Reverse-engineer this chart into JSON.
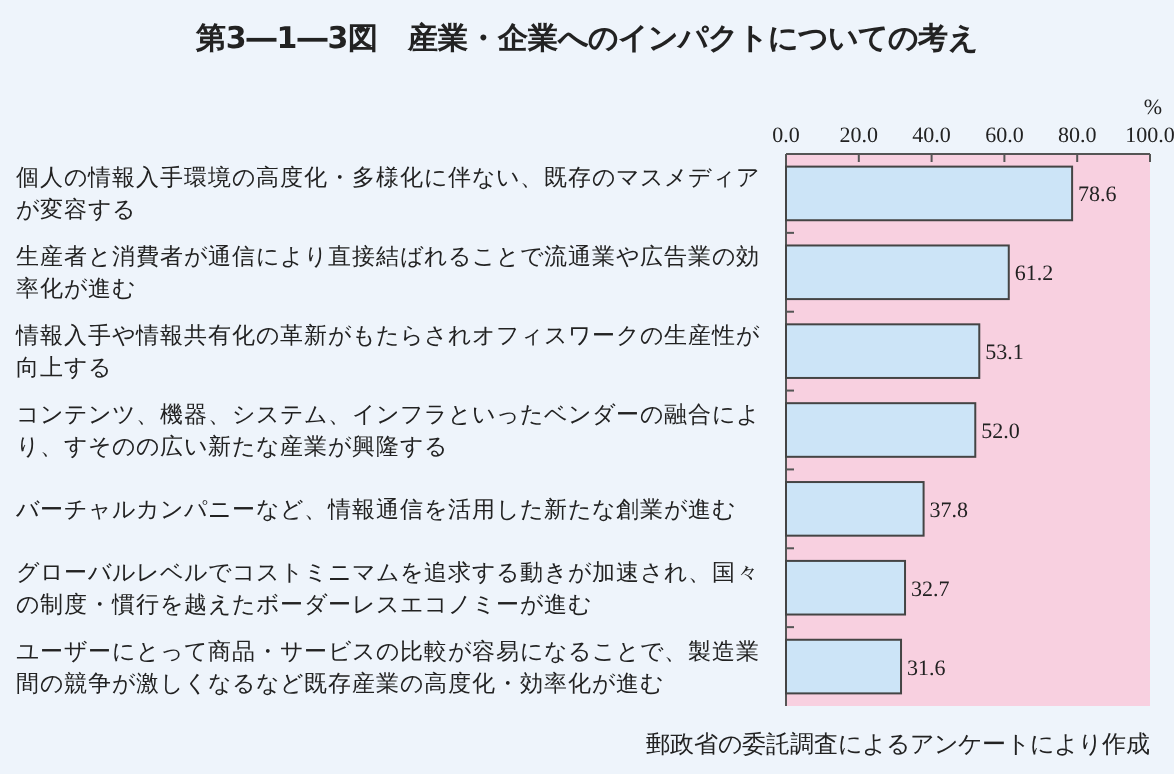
{
  "chart_data": {
    "type": "bar",
    "orientation": "horizontal",
    "title": "第3―1―3図　産業・企業へのインパクトについての考え",
    "xlabel": "%",
    "categories": [
      "個人の情報入手環境の高度化・多様化に伴ない、既存のマスメディアが変容する",
      "生産者と消費者が通信により直接結ばれることで流通業や広告業の効率化が進む",
      "情報入手や情報共有化の革新がもたらされオフィスワークの生産性が向上する",
      "コンテンツ、機器、システム、インフラといったベンダーの融合により、すそのの広い新たな産業が興隆する",
      "バーチャルカンパニーなど、情報通信を活用した新たな創業が進む",
      "グローバルレベルでコストミニマムを追求する動きが加速され、国々の制度・慣行を越えたボーダーレスエコノミーが進む",
      "ユーザーにとって商品・サービスの比較が容易になることで、製造業間の競争が激しくなるなど既存産業の高度化・効率化が進む"
    ],
    "values": [
      78.6,
      61.2,
      53.1,
      52.0,
      37.8,
      32.7,
      31.6
    ],
    "value_labels": [
      "78.6",
      "61.2",
      "53.1",
      "52.0",
      "37.8",
      "32.7",
      "31.6"
    ],
    "color": "#cce4f7",
    "xlim": [
      0,
      100
    ],
    "xticks": [
      {
        "value": 0,
        "label": "0.0"
      },
      {
        "value": 20,
        "label": "20.0"
      },
      {
        "value": 40,
        "label": "40.0"
      },
      {
        "value": 60,
        "label": "60.0"
      },
      {
        "value": 80,
        "label": "80.0"
      },
      {
        "value": 100,
        "label": "100.0"
      }
    ],
    "annotations": [
      "郵政省の委託調査によるアンケートにより作成"
    ]
  }
}
